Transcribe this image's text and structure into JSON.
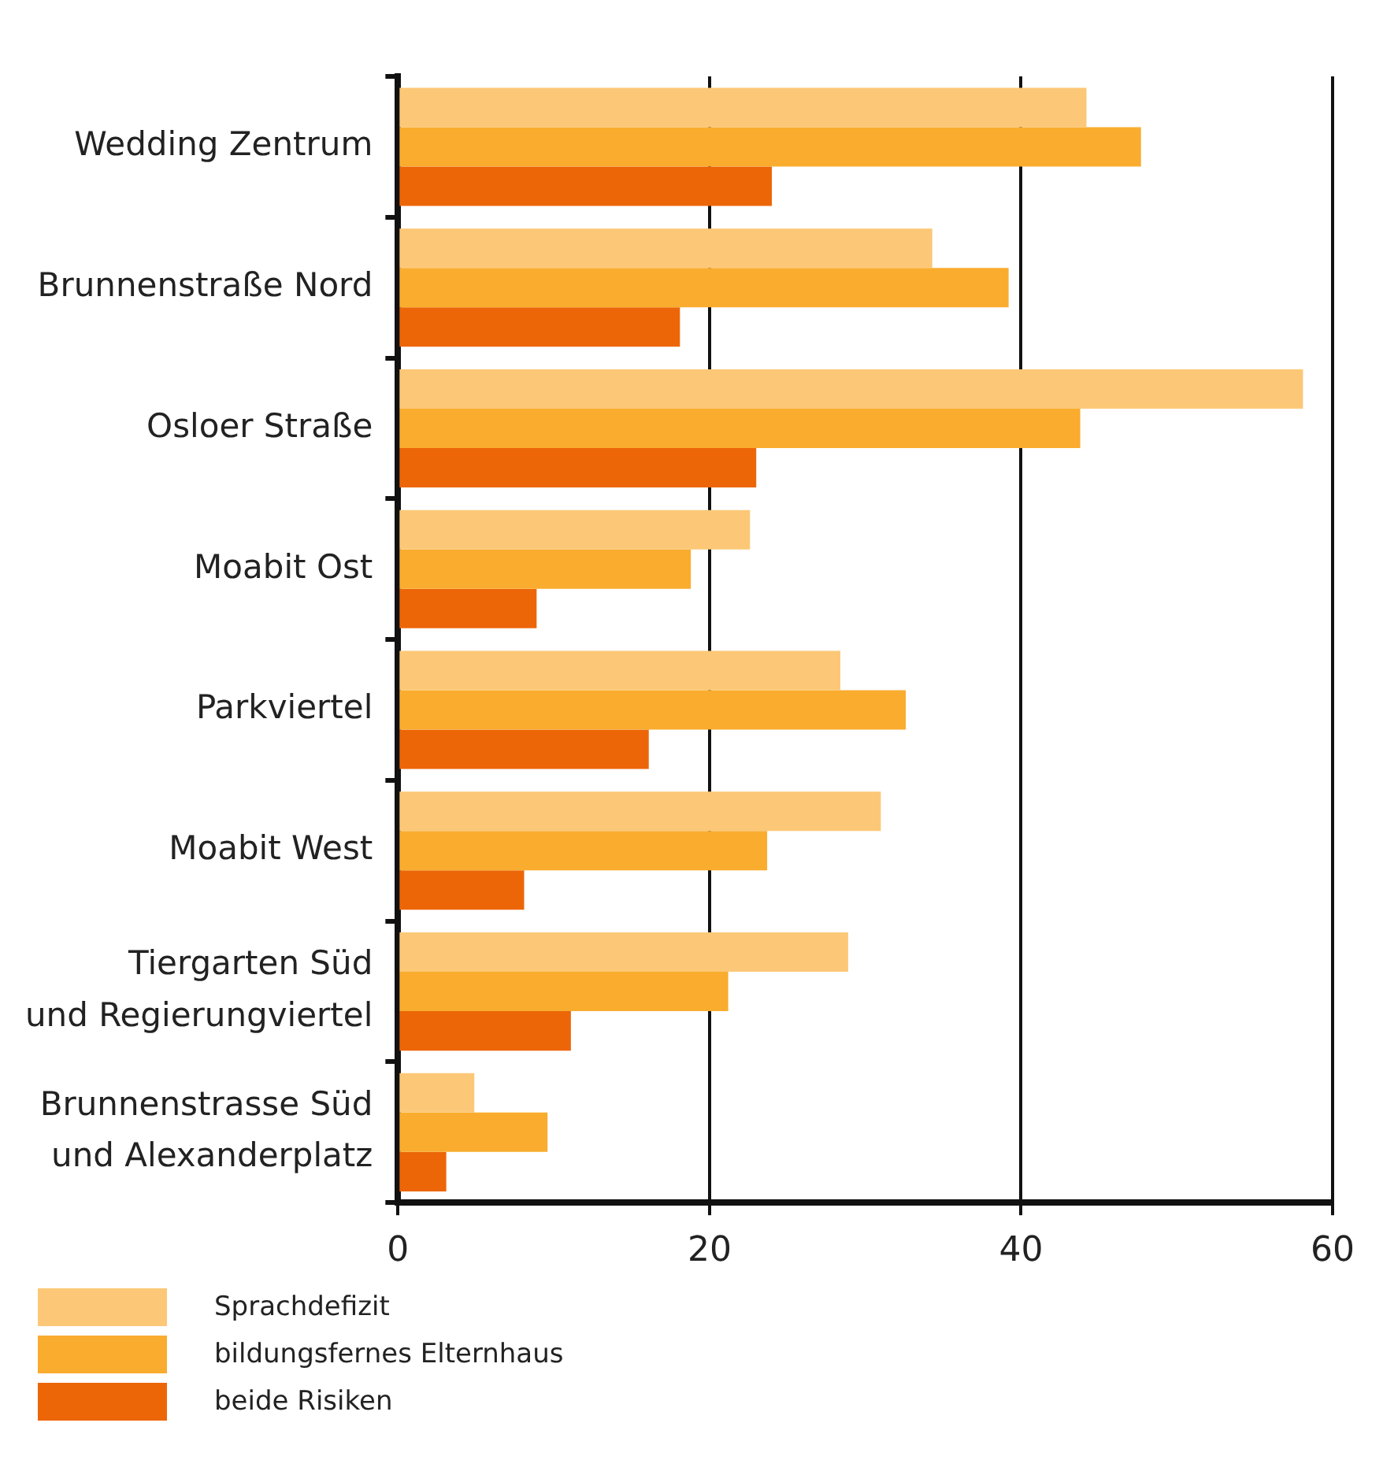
{
  "chart_data": {
    "type": "bar",
    "orientation": "horizontal",
    "categories": [
      "Wedding Zentrum",
      "Brunnenstraße Nord",
      "Osloer Straße",
      "Moabit Ost",
      "Parkviertel",
      "Moabit West",
      "Tiergarten Süd\nund Regierungviertel",
      "Brunnenstrasse Süd\nund Alexanderplatz"
    ],
    "series": [
      {
        "name": "Sprachdefizit",
        "color": "#fcc877",
        "values": [
          44.2,
          34.3,
          58.1,
          22.6,
          28.4,
          31.0,
          28.9,
          4.9
        ]
      },
      {
        "name": "bildungsfernes Elternhaus",
        "color": "#f9ac2e",
        "values": [
          47.7,
          39.2,
          43.8,
          18.8,
          32.6,
          23.7,
          21.2,
          9.6
        ]
      },
      {
        "name": "beide Risiken",
        "color": "#ec6608",
        "values": [
          24.0,
          18.1,
          23.0,
          8.9,
          16.1,
          8.1,
          11.1,
          3.1
        ]
      }
    ],
    "xlim": [
      0,
      60
    ],
    "xticks": [
      0,
      20,
      40,
      60
    ],
    "grid": "x",
    "legend": "bottom left"
  }
}
